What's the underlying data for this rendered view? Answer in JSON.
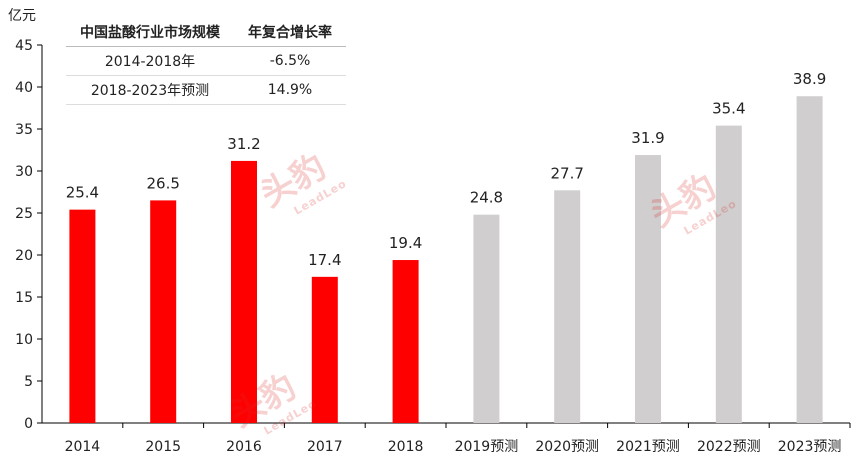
{
  "chart_data": {
    "type": "bar",
    "unit_label": "亿元",
    "categories": [
      "2014",
      "2015",
      "2016",
      "2017",
      "2018",
      "2019预测",
      "2020预测",
      "2021预测",
      "2022预测",
      "2023预测"
    ],
    "values": [
      25.4,
      26.5,
      31.2,
      17.4,
      19.4,
      24.8,
      27.7,
      31.9,
      35.4,
      38.9
    ],
    "value_labels": [
      "25.4",
      "26.5",
      "31.2",
      "17.4",
      "19.4",
      "24.8",
      "27.7",
      "31.9",
      "35.4",
      "38.9"
    ],
    "actual_count": 5,
    "colors": {
      "actual": "#ff0000",
      "forecast": "#d0cece"
    },
    "ylim": [
      0,
      45
    ],
    "yticks": [
      0,
      5,
      10,
      15,
      20,
      25,
      30,
      35,
      40,
      45
    ],
    "grid": false
  },
  "cagr_table": {
    "headers": [
      "中国盐酸行业市场规模",
      "年复合增长率"
    ],
    "rows": [
      [
        "2014-2018年",
        "-6.5%"
      ],
      [
        "2018-2023年预测",
        "14.9%"
      ]
    ]
  },
  "watermark": {
    "brand_cn": "头豹",
    "brand_en": "LeadLeo"
  }
}
